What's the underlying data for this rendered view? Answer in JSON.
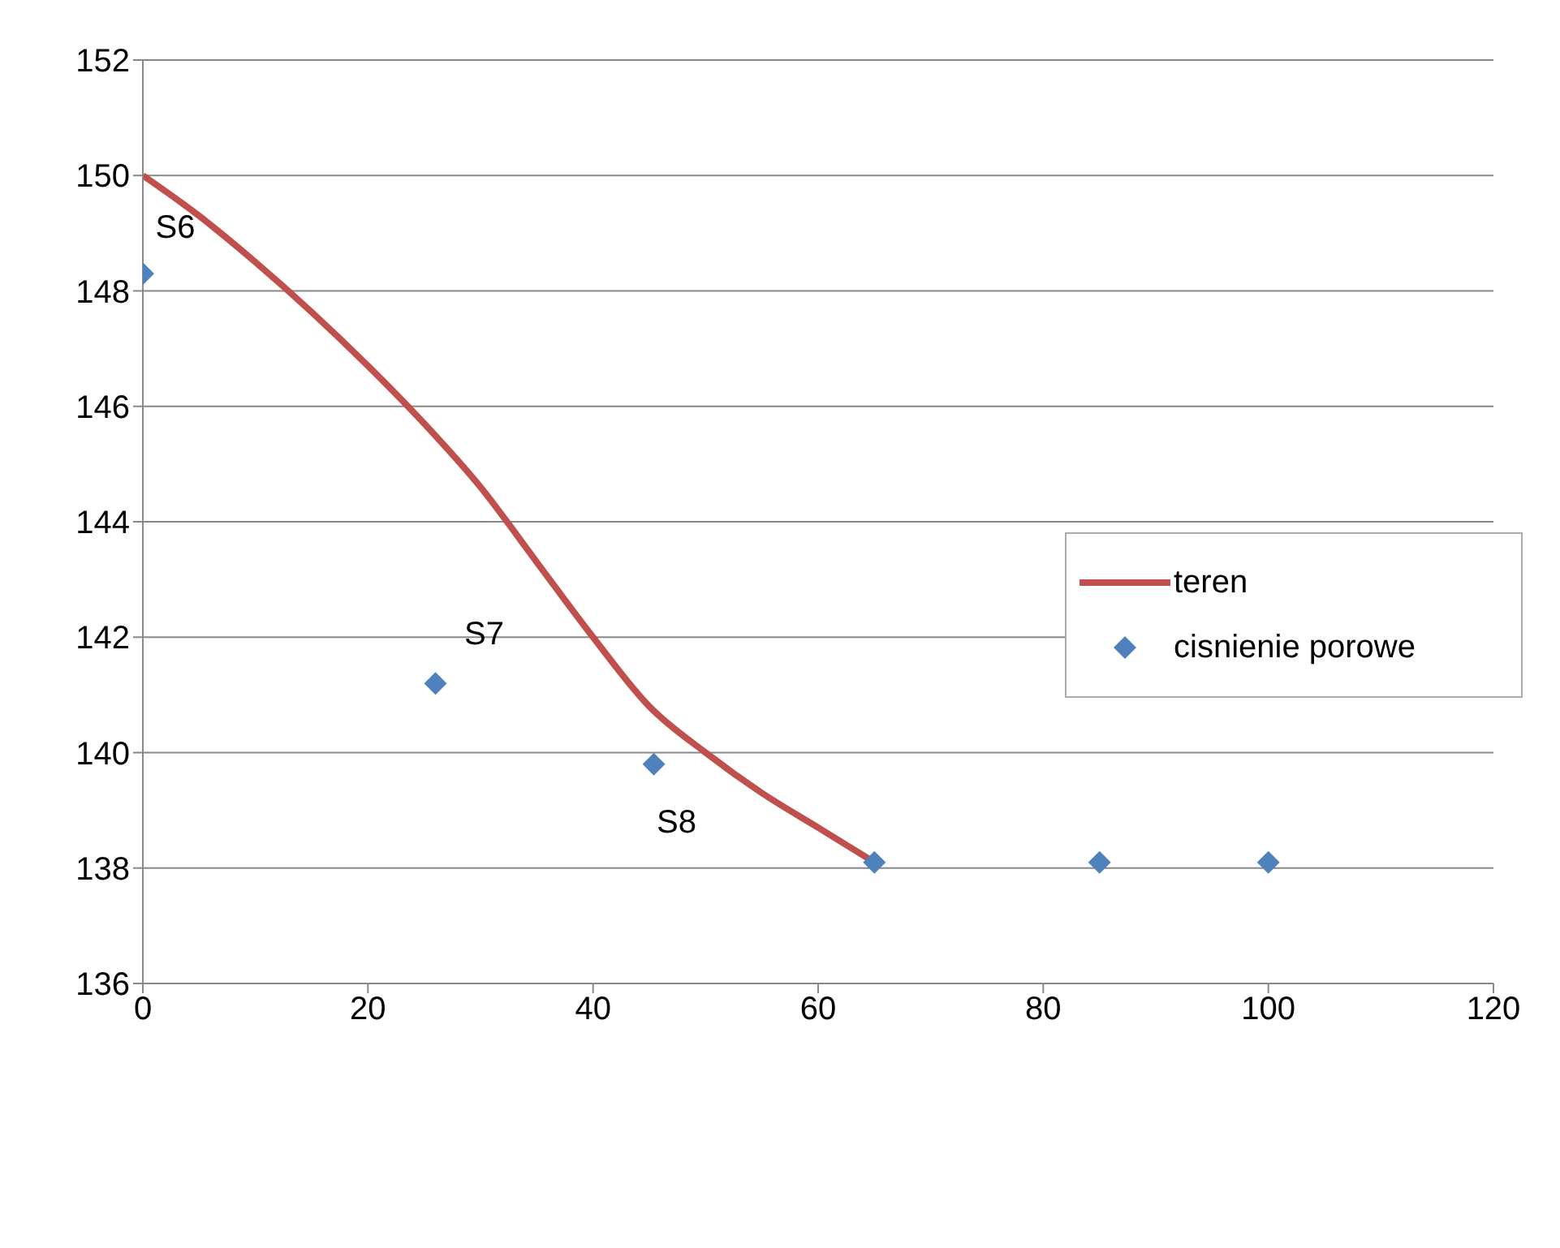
{
  "chart_data": {
    "type": "scatter",
    "series": [
      {
        "name": "teren",
        "type": "line",
        "color": "#c0504d",
        "marker": "none",
        "x": [
          0,
          5,
          10,
          20,
          25,
          30,
          35,
          40,
          45,
          50,
          55,
          60,
          65
        ],
        "values": [
          150,
          149.3,
          148.5,
          146.7,
          145.7,
          144.6,
          143.3,
          142.0,
          140.8,
          140.0,
          139.3,
          138.7,
          138.1
        ]
      },
      {
        "name": "cisnienie porowe",
        "color": "#4f81bd",
        "marker": "diamond",
        "x": [
          0,
          26,
          45.4,
          65,
          85,
          100
        ],
        "values": [
          148.3,
          141.2,
          139.8,
          138.1,
          138.1,
          138.1
        ]
      }
    ],
    "xlim": [
      0,
      120
    ],
    "xticks": [
      0,
      20,
      40,
      60,
      80,
      100,
      120
    ],
    "ylim": [
      136,
      152
    ],
    "yticks": [
      136,
      138,
      140,
      142,
      144,
      146,
      148,
      150,
      152
    ],
    "grid": "y",
    "legend": "right",
    "annotations": [
      {
        "text": "S6",
        "x": 0,
        "y": 148.3
      },
      {
        "text": "S7",
        "x": 26,
        "y": 141.2
      },
      {
        "text": "S8",
        "x": 45.4,
        "y": 139.8
      }
    ]
  }
}
